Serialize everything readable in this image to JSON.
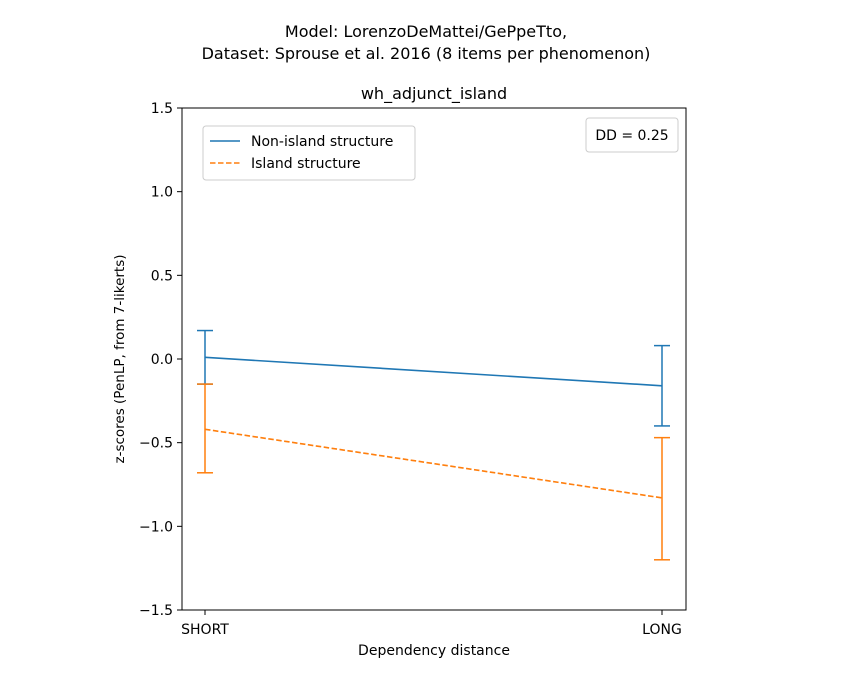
{
  "chart_data": {
    "type": "line",
    "suptitle_line1": "Model: LorenzoDeMattei/GePpeTto,",
    "suptitle_line2": "Dataset: Sprouse et al. 2016 (8 items per phenomenon)",
    "title": "wh_adjunct_island",
    "xlabel": "Dependency distance",
    "ylabel": "z-scores (PenLP, from 7-likerts)",
    "categories": [
      "SHORT",
      "LONG"
    ],
    "ylim": [
      -1.5,
      1.5
    ],
    "yticks": [
      -1.5,
      -1.0,
      -0.5,
      0.0,
      0.5,
      1.0,
      1.5
    ],
    "ytick_labels": [
      "−1.5",
      "−1.0",
      "−0.5",
      "0.0",
      "0.5",
      "1.0",
      "1.5"
    ],
    "grid": false,
    "legend_position": "upper-left",
    "annotation": "DD = 0.25",
    "series": [
      {
        "name": "Non-island structure",
        "color": "#1f77b4",
        "line_style": "solid",
        "values": [
          0.01,
          -0.16
        ],
        "error_low": [
          -0.15,
          -0.4
        ],
        "error_high": [
          0.17,
          0.08
        ]
      },
      {
        "name": "Island structure",
        "color": "#ff7f0e",
        "line_style": "dashed",
        "values": [
          -0.42,
          -0.83
        ],
        "error_low": [
          -0.68,
          -1.2
        ],
        "error_high": [
          -0.15,
          -0.47
        ]
      }
    ]
  }
}
